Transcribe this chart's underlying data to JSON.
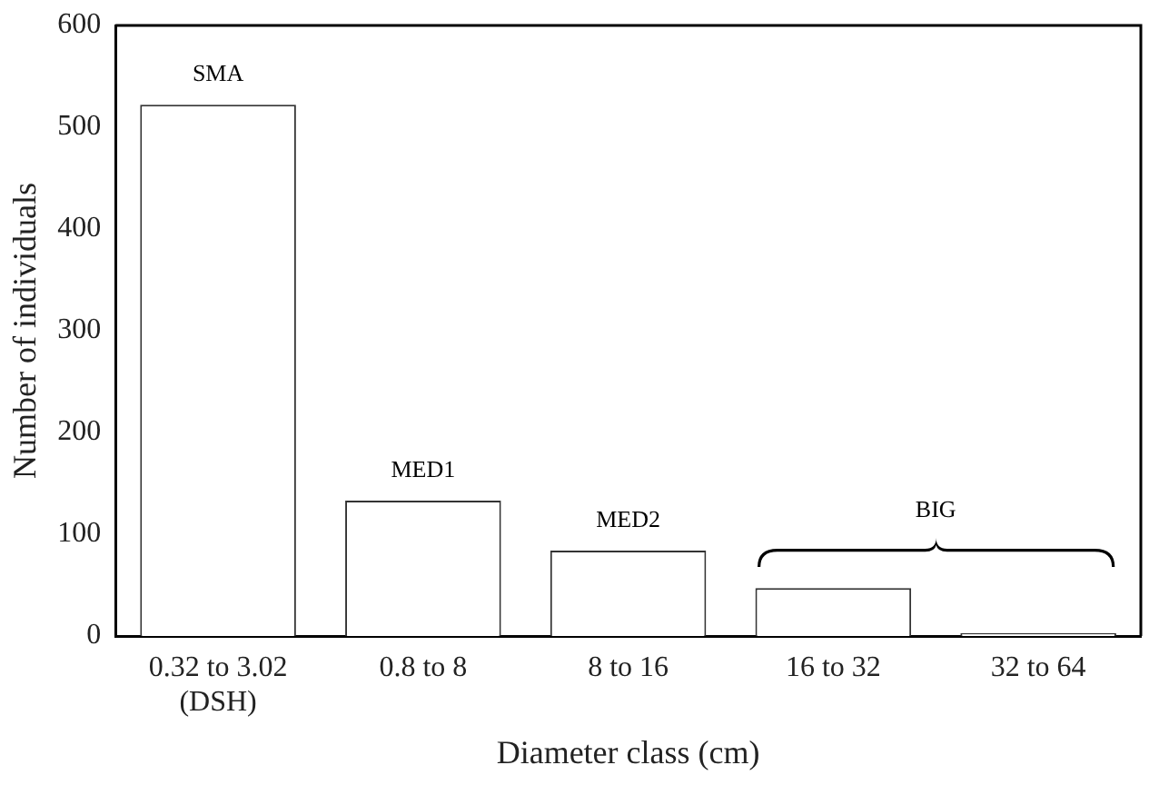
{
  "chart_data": {
    "type": "bar",
    "xlabel": "Diameter class (cm)",
    "ylabel": "Number of individuals",
    "categories": [
      "0.32 to 3.02 (DSH)",
      "0.8 to 8",
      "8 to 16",
      "16 to 32",
      "32 to 64"
    ],
    "values": [
      522,
      133,
      84,
      47,
      3
    ],
    "color": "#ffffff",
    "ylim": [
      0,
      600
    ],
    "yticks": [
      0,
      100,
      200,
      300,
      400,
      500,
      600
    ],
    "grid": false,
    "legend": false,
    "annotations": [
      {
        "text": "SMA",
        "x": "0.32 to 3.02 (DSH)",
        "y": 522
      },
      {
        "text": "MED1",
        "x": "0.8 to 8",
        "y": 133
      },
      {
        "text": "MED2",
        "x": "8 to 16",
        "y": 84
      },
      "BIG"
    ]
  }
}
